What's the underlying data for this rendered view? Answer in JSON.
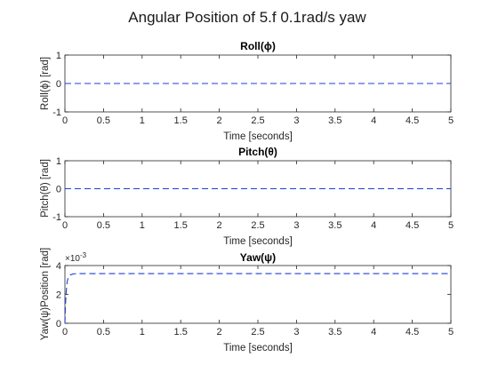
{
  "figure_title": "Angular Position of 5.f 0.1rad/s yaw",
  "line_color": "#1f3fd6",
  "chart_data": [
    {
      "type": "line",
      "title": "Roll(ϕ)",
      "xlabel": "Time [seconds]",
      "ylabel": "Roll(ϕ) [rad]",
      "xlim": [
        0,
        5
      ],
      "ylim": [
        -1,
        1
      ],
      "xticks": [
        0,
        0.5,
        1,
        1.5,
        2,
        2.5,
        3,
        3.5,
        4,
        4.5,
        5
      ],
      "xtick_labels": [
        "0",
        "0.5",
        "1",
        "1.5",
        "2",
        "2.5",
        "3",
        "3.5",
        "4",
        "4.5",
        "5"
      ],
      "yticks": [
        -1,
        0,
        1
      ],
      "ytick_labels": [
        "-1",
        "0",
        "1"
      ],
      "grid": false,
      "line_style": "dashed",
      "series": [
        {
          "x": [
            0,
            5
          ],
          "y": [
            0,
            0
          ]
        }
      ]
    },
    {
      "type": "line",
      "title": "Pitch(θ)",
      "xlabel": "Time [seconds]",
      "ylabel": "Pitch(θ) [rad]",
      "xlim": [
        0,
        5
      ],
      "ylim": [
        -1,
        1
      ],
      "xticks": [
        0,
        0.5,
        1,
        1.5,
        2,
        2.5,
        3,
        3.5,
        4,
        4.5,
        5
      ],
      "xtick_labels": [
        "0",
        "0.5",
        "1",
        "1.5",
        "2",
        "2.5",
        "3",
        "3.5",
        "4",
        "4.5",
        "5"
      ],
      "yticks": [
        -1,
        0,
        1
      ],
      "ytick_labels": [
        "-1",
        "0",
        "1"
      ],
      "grid": false,
      "line_style": "dashed",
      "series": [
        {
          "x": [
            0,
            5
          ],
          "y": [
            0,
            0
          ]
        }
      ]
    },
    {
      "type": "line",
      "title": "Yaw(ψ)",
      "xlabel": "Time [seconds]",
      "ylabel": "Yaw(ψ)Position [rad]",
      "xlim": [
        0,
        5
      ],
      "ylim": [
        0,
        0.004
      ],
      "exponent_label": "×10",
      "exponent_power": "-3",
      "xticks": [
        0,
        0.5,
        1,
        1.5,
        2,
        2.5,
        3,
        3.5,
        4,
        4.5,
        5
      ],
      "xtick_labels": [
        "0",
        "0.5",
        "1",
        "1.5",
        "2",
        "2.5",
        "3",
        "3.5",
        "4",
        "4.5",
        "5"
      ],
      "yticks": [
        0,
        0.002,
        0.004
      ],
      "ytick_labels": [
        "0",
        "2",
        "4"
      ],
      "grid": false,
      "line_style": "dashed",
      "series": [
        {
          "x": [
            0,
            0.005,
            0.01,
            0.02,
            0.03,
            0.04,
            0.05,
            0.07,
            0.1,
            0.13,
            0.16,
            0.2,
            0.3,
            0.5,
            1,
            2,
            3,
            4,
            5
          ],
          "y": [
            0,
            0.0009,
            0.0016,
            0.0024,
            0.0029,
            0.0031,
            0.0032,
            0.00335,
            0.00341,
            0.00343,
            0.00344,
            0.00344,
            0.00344,
            0.00344,
            0.00344,
            0.00344,
            0.00344,
            0.00344,
            0.00344
          ]
        }
      ]
    }
  ]
}
